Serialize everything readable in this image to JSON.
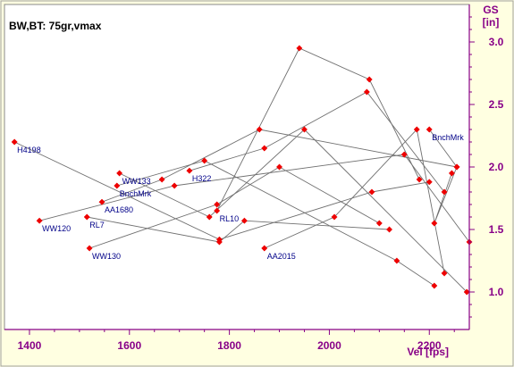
{
  "chart_data": {
    "type": "scatter",
    "title": "BW,BT: 75gr,vmax",
    "xlabel": "Vel [fps]",
    "ylabel": "GS\n[in]",
    "ylabel_lines": [
      "GS",
      "[in]"
    ],
    "xlim": [
      1350,
      2280
    ],
    "ylim": [
      0.7,
      3.3
    ],
    "xticks": [
      1400,
      1600,
      1800,
      2000,
      2200
    ],
    "xtick_labels": [
      "1400",
      "1600",
      "1800",
      "2000",
      "2200"
    ],
    "yticks": [
      1.0,
      1.5,
      2.0,
      2.5,
      3.0
    ],
    "ytick_labels": [
      "1.0",
      "1.5",
      "2.0",
      "2.5",
      "3.0"
    ],
    "grid": false,
    "colors": {
      "background": "#ffffe1",
      "plot_background": "#ffffff",
      "axis": "#880088",
      "line": "#707070",
      "marker": "#ee0000",
      "label": "#000088"
    },
    "series": [
      {
        "name": "H4198",
        "x": [
          1370,
          1780,
          2085,
          2200
        ],
        "y": [
          2.2,
          1.42,
          1.8,
          1.88
        ]
      },
      {
        "name": "WW120",
        "x": [
          1420,
          1690,
          2150,
          2280
        ],
        "y": [
          1.57,
          1.85,
          2.1,
          1.4
        ]
      },
      {
        "name": "RL7",
        "x": [
          1515,
          1780,
          1830,
          2120
        ],
        "y": [
          1.6,
          1.4,
          1.57,
          1.5
        ]
      },
      {
        "name": "AA1680",
        "x": [
          1545,
          1665,
          1860,
          2255
        ],
        "y": [
          1.72,
          1.9,
          2.3,
          2.0
        ]
      },
      {
        "name": "WW130",
        "x": [
          1520,
          1775,
          1900,
          2100
        ],
        "y": [
          1.35,
          1.7,
          2.0,
          1.55
        ]
      },
      {
        "name": "BnchMrk",
        "x": [
          1575,
          1750,
          2135,
          2210
        ],
        "y": [
          1.85,
          2.05,
          1.25,
          1.05
        ]
      },
      {
        "name": "WW133",
        "x": [
          1580,
          1760,
          1950,
          2275
        ],
        "y": [
          1.95,
          1.6,
          2.3,
          1.0
        ]
      },
      {
        "name": "H322",
        "x": [
          1720,
          1870,
          2075,
          2230
        ],
        "y": [
          1.97,
          2.15,
          2.6,
          1.8
        ]
      },
      {
        "name": "RL10",
        "x": [
          1775,
          1940,
          2080,
          2180
        ],
        "y": [
          1.65,
          2.95,
          2.7,
          1.9
        ]
      },
      {
        "name": "AA2015",
        "x": [
          1870,
          2010,
          2175,
          2230
        ],
        "y": [
          1.35,
          1.6,
          2.3,
          1.15
        ]
      },
      {
        "name": "BnchMrk",
        "x": [
          2200,
          2255,
          2210,
          2245
        ],
        "y": [
          2.3,
          2.0,
          1.55,
          1.95
        ]
      }
    ],
    "point_labels": [
      {
        "text": "H4198",
        "x": 1370,
        "y": 2.2
      },
      {
        "text": "WW120",
        "x": 1420,
        "y": 1.57
      },
      {
        "text": "RL7",
        "x": 1515,
        "y": 1.6
      },
      {
        "text": "AA1680",
        "x": 1545,
        "y": 1.72
      },
      {
        "text": "WW130",
        "x": 1520,
        "y": 1.35
      },
      {
        "text": "BnchMrk",
        "x": 1575,
        "y": 1.85
      },
      {
        "text": "WW133",
        "x": 1580,
        "y": 1.95
      },
      {
        "text": "H322",
        "x": 1720,
        "y": 1.97
      },
      {
        "text": "RL10",
        "x": 1775,
        "y": 1.65
      },
      {
        "text": "AA2015",
        "x": 1870,
        "y": 1.35
      },
      {
        "text": "BnchMrk",
        "x": 2200,
        "y": 2.3
      }
    ]
  }
}
